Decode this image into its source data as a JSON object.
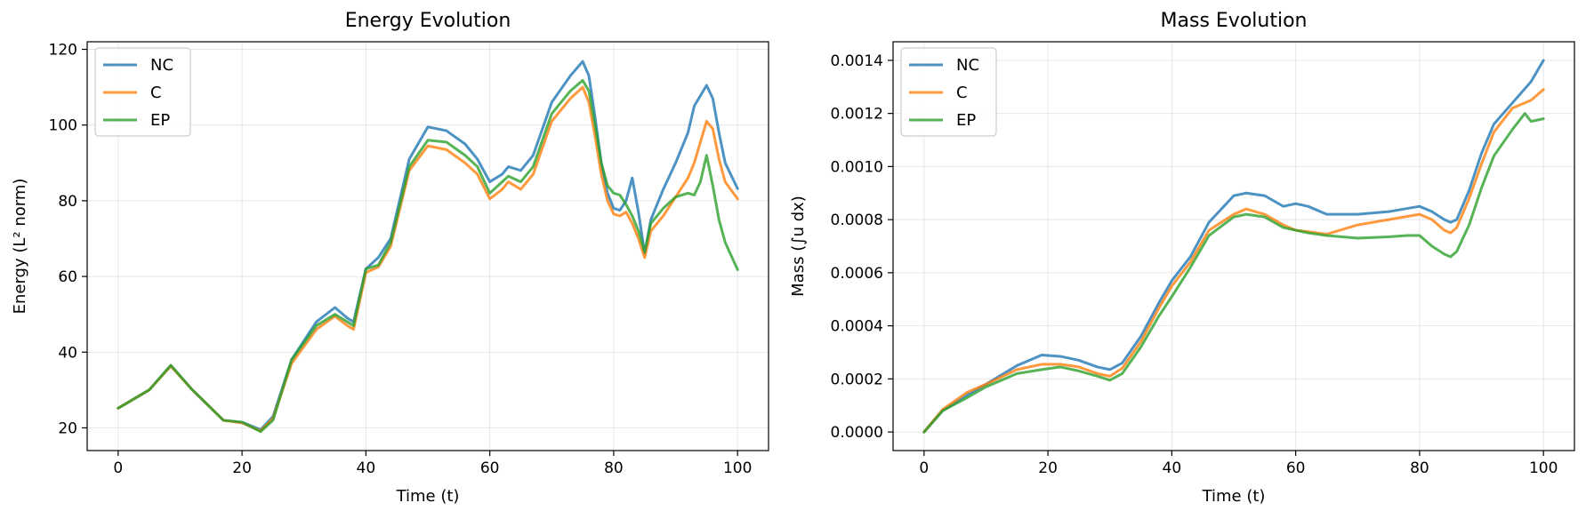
{
  "chart_data": [
    {
      "type": "line",
      "title": "Energy Evolution",
      "xlabel": "Time (t)",
      "ylabel": "Energy (L² norm)",
      "xlim": [
        -5,
        105
      ],
      "ylim": [
        14,
        122
      ],
      "xticks": [
        0,
        20,
        40,
        60,
        80,
        100
      ],
      "yticks": [
        20,
        40,
        60,
        80,
        100,
        120
      ],
      "grid": true,
      "legend": "upper left",
      "series": [
        {
          "name": "NC",
          "color": "#1f77b4",
          "x": [
            0,
            5,
            8.5,
            12,
            17,
            20,
            23,
            25,
            28,
            32,
            35,
            37,
            38,
            40,
            42,
            44,
            47,
            50,
            53,
            56,
            58,
            60,
            62,
            63,
            65,
            67,
            70,
            73,
            75,
            76,
            77,
            78,
            79,
            80,
            81,
            82,
            83,
            84,
            85,
            86,
            88,
            90,
            92,
            93,
            95,
            96,
            97,
            98,
            100
          ],
          "y": [
            25.2,
            30,
            36.5,
            30,
            22,
            21.5,
            19.5,
            23,
            38,
            48,
            51.8,
            49,
            48,
            62,
            65,
            70,
            91,
            99.5,
            98.5,
            95,
            91,
            85,
            87,
            89,
            88,
            92,
            106,
            113,
            116.8,
            113,
            102,
            90,
            82,
            78,
            77.5,
            80,
            86,
            77,
            66,
            75,
            83,
            90,
            98,
            105,
            110.5,
            107,
            98,
            90,
            83.2
          ]
        },
        {
          "name": "C",
          "color": "#ff7f0e",
          "x": [
            0,
            5,
            8.5,
            12,
            17,
            20,
            23,
            25,
            28,
            32,
            35,
            37,
            38,
            40,
            42,
            44,
            47,
            50,
            53,
            56,
            58,
            60,
            62,
            63,
            65,
            67,
            70,
            73,
            75,
            76,
            77,
            78,
            79,
            80,
            81,
            82,
            83,
            84,
            85,
            86,
            88,
            90,
            92,
            93,
            95,
            96,
            97,
            98,
            100
          ],
          "y": [
            25.2,
            30,
            36.3,
            30,
            22,
            21.3,
            19.2,
            22.5,
            37,
            46,
            49.5,
            47,
            46,
            61,
            62.5,
            68,
            88,
            94.5,
            93.5,
            90,
            87,
            80.5,
            83,
            85,
            83,
            87,
            101,
            107,
            110,
            106,
            97,
            87,
            80,
            76.5,
            76,
            77,
            74,
            70,
            65,
            72,
            76,
            81,
            86,
            90,
            101,
            99,
            91,
            85,
            80.5
          ]
        },
        {
          "name": "EP",
          "color": "#2ca02c",
          "x": [
            0,
            5,
            8.5,
            12,
            17,
            20,
            23,
            25,
            28,
            32,
            35,
            37,
            38,
            40,
            42,
            44,
            47,
            50,
            53,
            56,
            58,
            60,
            62,
            63,
            65,
            67,
            70,
            73,
            75,
            76,
            77,
            78,
            79,
            80,
            81,
            82,
            83,
            84,
            85,
            86,
            88,
            90,
            92,
            93,
            94,
            95,
            96,
            97,
            98,
            100
          ],
          "y": [
            25.2,
            30,
            36.5,
            30,
            22,
            21.5,
            19,
            22,
            38,
            47,
            50,
            48,
            47,
            62,
            63,
            69,
            89,
            96,
            95.5,
            92,
            89,
            82,
            85,
            86.5,
            85,
            89,
            103,
            109,
            111.8,
            109,
            100,
            90,
            84,
            82,
            81.5,
            79,
            76,
            72,
            66.5,
            74,
            78,
            81,
            82,
            81.5,
            85,
            92,
            84,
            75,
            69,
            61.8
          ]
        }
      ]
    },
    {
      "type": "line",
      "title": "Mass Evolution",
      "xlabel": "Time (t)",
      "ylabel": "Mass (∫u dx)",
      "xlim": [
        -5,
        105
      ],
      "ylim": [
        -7e-05,
        0.00147
      ],
      "xticks": [
        0,
        20,
        40,
        60,
        80,
        100
      ],
      "yticks": [
        "0.0000",
        "0.0002",
        "0.0004",
        "0.0006",
        "0.0008",
        "0.0010",
        "0.0012",
        "0.0014"
      ],
      "grid": true,
      "legend": "upper left",
      "series": [
        {
          "name": "NC",
          "color": "#1f77b4",
          "x": [
            0,
            3,
            7,
            10,
            15,
            19,
            22,
            25,
            28,
            30,
            32,
            35,
            38,
            40,
            43,
            46,
            50,
            52,
            55,
            58,
            60,
            62,
            65,
            70,
            75,
            80,
            82,
            84,
            85,
            86,
            88,
            90,
            92,
            95,
            98,
            100
          ],
          "y": [
            0,
            8e-05,
            0.00014,
            0.00018,
            0.00025,
            0.00029,
            0.000285,
            0.00027,
            0.000245,
            0.000235,
            0.00026,
            0.00036,
            0.00049,
            0.00057,
            0.00066,
            0.00079,
            0.00089,
            0.0009,
            0.00089,
            0.00085,
            0.00086,
            0.00085,
            0.00082,
            0.00082,
            0.00083,
            0.00085,
            0.00083,
            0.0008,
            0.00079,
            0.0008,
            0.00091,
            0.00105,
            0.00116,
            0.00124,
            0.00132,
            0.0014
          ]
        },
        {
          "name": "C",
          "color": "#ff7f0e",
          "x": [
            0,
            3,
            7,
            10,
            15,
            19,
            22,
            25,
            28,
            30,
            32,
            35,
            38,
            40,
            43,
            46,
            50,
            52,
            55,
            58,
            60,
            62,
            65,
            70,
            75,
            80,
            82,
            84,
            85,
            86,
            88,
            90,
            92,
            95,
            98,
            100
          ],
          "y": [
            0,
            8.5e-05,
            0.00015,
            0.00018,
            0.000235,
            0.000255,
            0.000255,
            0.000245,
            0.00022,
            0.00021,
            0.00024,
            0.00034,
            0.00047,
            0.00055,
            0.00064,
            0.00076,
            0.00082,
            0.00084,
            0.00082,
            0.00078,
            0.00076,
            0.000755,
            0.000745,
            0.00078,
            0.0008,
            0.00082,
            0.0008,
            0.00076,
            0.00075,
            0.00077,
            0.00088,
            0.00101,
            0.00113,
            0.00122,
            0.00125,
            0.00129
          ]
        },
        {
          "name": "EP",
          "color": "#2ca02c",
          "x": [
            0,
            3,
            7,
            10,
            15,
            19,
            22,
            25,
            28,
            30,
            32,
            35,
            38,
            40,
            43,
            46,
            50,
            52,
            55,
            58,
            60,
            62,
            65,
            70,
            75,
            78,
            80,
            82,
            84,
            85,
            86,
            88,
            90,
            92,
            95,
            97,
            98,
            100
          ],
          "y": [
            0,
            8e-05,
            0.00013,
            0.00017,
            0.00022,
            0.000235,
            0.000245,
            0.00023,
            0.00021,
            0.000195,
            0.00022,
            0.00032,
            0.00044,
            0.00051,
            0.00062,
            0.00074,
            0.00081,
            0.00082,
            0.00081,
            0.00077,
            0.00076,
            0.00075,
            0.00074,
            0.00073,
            0.000735,
            0.00074,
            0.00074,
            0.0007,
            0.00067,
            0.00066,
            0.00068,
            0.00078,
            0.00092,
            0.00104,
            0.00114,
            0.0012,
            0.00117,
            0.00118
          ]
        }
      ]
    }
  ]
}
